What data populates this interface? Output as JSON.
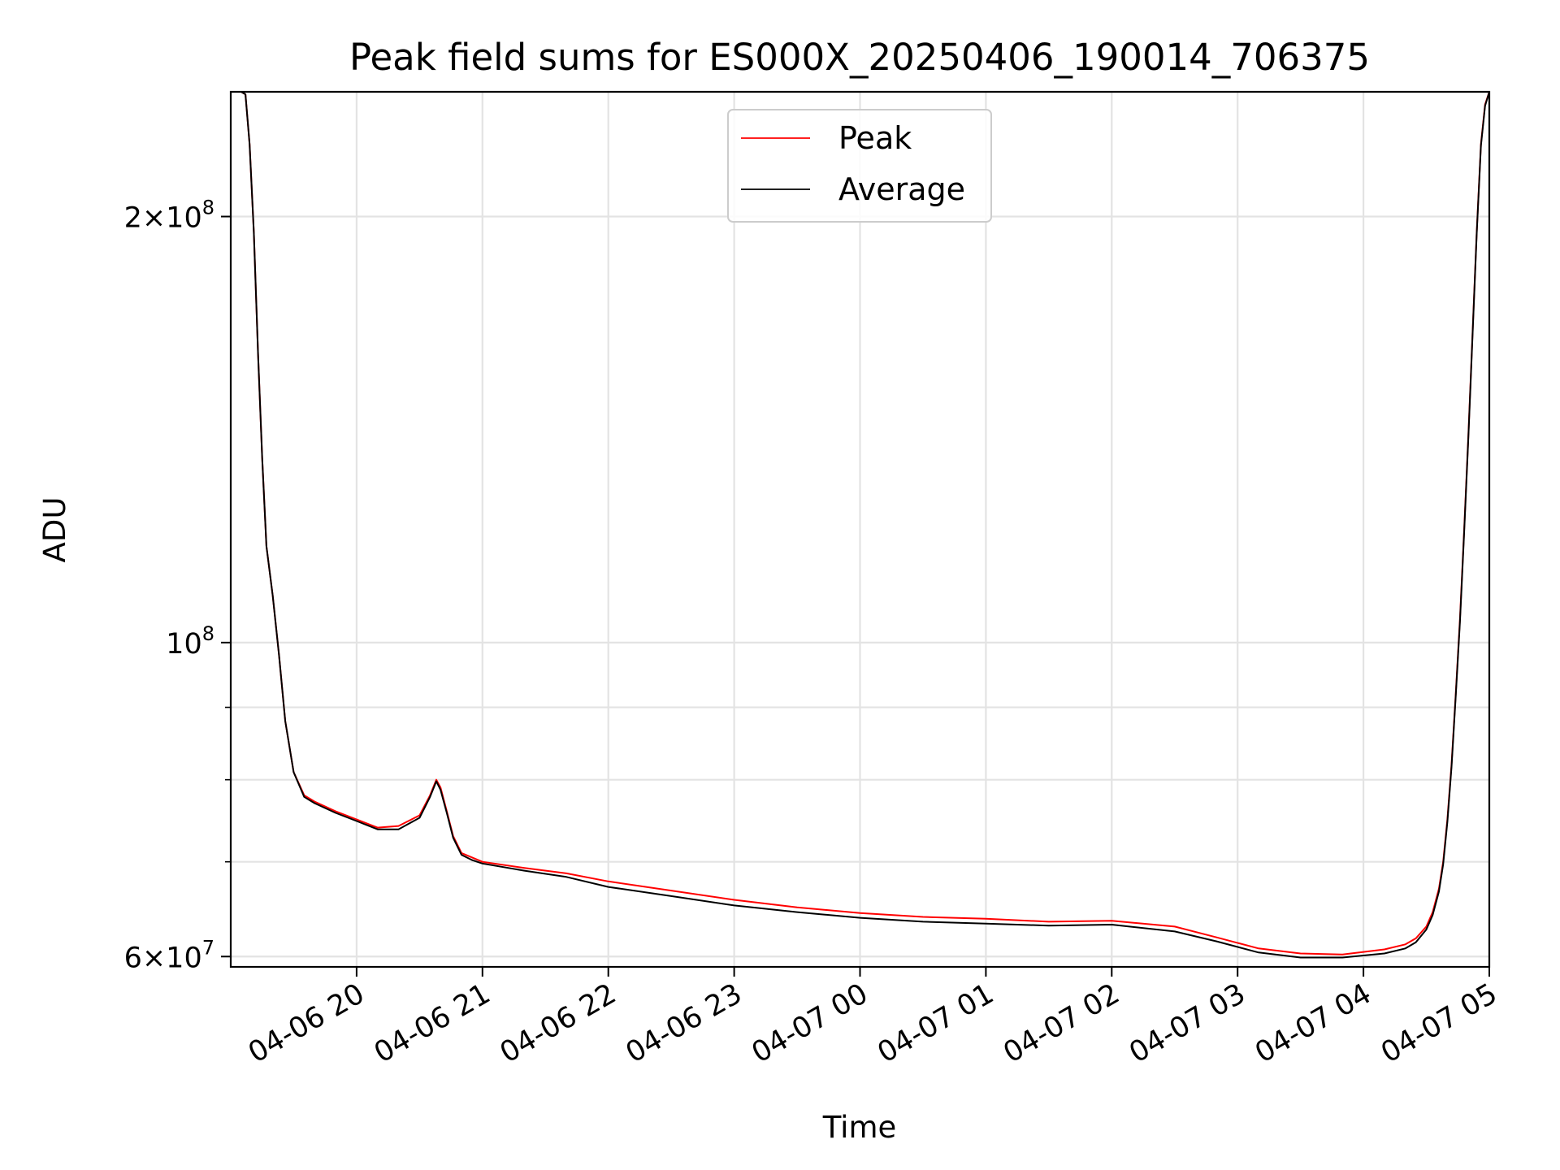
{
  "chart_data": {
    "type": "line",
    "title": "Peak field sums for ES000X_20250406_190014_706375",
    "xlabel": "Time",
    "ylabel": "ADU",
    "yscale": "log",
    "grid": true,
    "legend_position": "upper center",
    "xlim": [
      "2025-04-06 19:00",
      "2025-04-07 05:00"
    ],
    "ylim": [
      59000000,
      245000000
    ],
    "x_ticks": [
      {
        "value": "2025-04-06 20:00",
        "label": "04-06 20"
      },
      {
        "value": "2025-04-06 21:00",
        "label": "04-06 21"
      },
      {
        "value": "2025-04-06 22:00",
        "label": "04-06 22"
      },
      {
        "value": "2025-04-06 23:00",
        "label": "04-06 23"
      },
      {
        "value": "2025-04-07 00:00",
        "label": "04-07 00"
      },
      {
        "value": "2025-04-07 01:00",
        "label": "04-07 01"
      },
      {
        "value": "2025-04-07 02:00",
        "label": "04-07 02"
      },
      {
        "value": "2025-04-07 03:00",
        "label": "04-07 03"
      },
      {
        "value": "2025-04-07 04:00",
        "label": "04-07 04"
      },
      {
        "value": "2025-04-07 05:00",
        "label": "04-07 05"
      }
    ],
    "y_ticks": [
      {
        "value": 60000000,
        "mantissa": "6",
        "exponent": "7"
      },
      {
        "value": 100000000,
        "mantissa": "",
        "exponent": "8"
      },
      {
        "value": 200000000,
        "mantissa": "2",
        "exponent": "8"
      }
    ],
    "y_minor_ticks": [
      70000000,
      80000000,
      90000000
    ],
    "series": [
      {
        "name": "Peak",
        "color": "#ff0000",
        "x": [
          "2025-04-06 19:05",
          "2025-04-06 19:07",
          "2025-04-06 19:09",
          "2025-04-06 19:11",
          "2025-04-06 19:13",
          "2025-04-06 19:15",
          "2025-04-06 19:17",
          "2025-04-06 19:20",
          "2025-04-06 19:23",
          "2025-04-06 19:26",
          "2025-04-06 19:30",
          "2025-04-06 19:35",
          "2025-04-06 19:40",
          "2025-04-06 19:50",
          "2025-04-06 20:00",
          "2025-04-06 20:10",
          "2025-04-06 20:20",
          "2025-04-06 20:30",
          "2025-04-06 20:35",
          "2025-04-06 20:38",
          "2025-04-06 20:40",
          "2025-04-06 20:43",
          "2025-04-06 20:46",
          "2025-04-06 20:50",
          "2025-04-06 20:55",
          "2025-04-06 21:00",
          "2025-04-06 21:20",
          "2025-04-06 21:40",
          "2025-04-06 22:00",
          "2025-04-06 22:30",
          "2025-04-06 23:00",
          "2025-04-06 23:30",
          "2025-04-07 00:00",
          "2025-04-07 00:30",
          "2025-04-07 01:00",
          "2025-04-07 01:30",
          "2025-04-07 02:00",
          "2025-04-07 02:30",
          "2025-04-07 02:50",
          "2025-04-07 03:10",
          "2025-04-07 03:30",
          "2025-04-07 03:50",
          "2025-04-07 04:10",
          "2025-04-07 04:20",
          "2025-04-07 04:25",
          "2025-04-07 04:30",
          "2025-04-07 04:33",
          "2025-04-07 04:36",
          "2025-04-07 04:38",
          "2025-04-07 04:40",
          "2025-04-07 04:42",
          "2025-04-07 04:44",
          "2025-04-07 04:46",
          "2025-04-07 04:48",
          "2025-04-07 04:50",
          "2025-04-07 04:52",
          "2025-04-07 04:54",
          "2025-04-07 04:56",
          "2025-04-07 04:58",
          "2025-04-07 05:00",
          "2025-04-07 05:02"
        ],
        "y": [
          245000000,
          244000000,
          225000000,
          195000000,
          160000000,
          135000000,
          117000000,
          108000000,
          98000000,
          88000000,
          81000000,
          78000000,
          77200000,
          76000000,
          75000000,
          74000000,
          74200000,
          75500000,
          78000000,
          80000000,
          79000000,
          76000000,
          73000000,
          71000000,
          70500000,
          70000000,
          69300000,
          68700000,
          67800000,
          66800000,
          65800000,
          65000000,
          64400000,
          64000000,
          63800000,
          63500000,
          63600000,
          63000000,
          61900000,
          60800000,
          60300000,
          60200000,
          60700000,
          61200000,
          61800000,
          63000000,
          64500000,
          67000000,
          70000000,
          75000000,
          82000000,
          92000000,
          104000000,
          120000000,
          140000000,
          165000000,
          195000000,
          225000000,
          240000000,
          245000000,
          245000000
        ]
      },
      {
        "name": "Average",
        "color": "#000000",
        "x": [
          "2025-04-06 19:05",
          "2025-04-06 19:07",
          "2025-04-06 19:09",
          "2025-04-06 19:11",
          "2025-04-06 19:13",
          "2025-04-06 19:15",
          "2025-04-06 19:17",
          "2025-04-06 19:20",
          "2025-04-06 19:23",
          "2025-04-06 19:26",
          "2025-04-06 19:30",
          "2025-04-06 19:35",
          "2025-04-06 19:40",
          "2025-04-06 19:50",
          "2025-04-06 20:00",
          "2025-04-06 20:10",
          "2025-04-06 20:20",
          "2025-04-06 20:30",
          "2025-04-06 20:35",
          "2025-04-06 20:38",
          "2025-04-06 20:40",
          "2025-04-06 20:43",
          "2025-04-06 20:46",
          "2025-04-06 20:50",
          "2025-04-06 20:55",
          "2025-04-06 21:00",
          "2025-04-06 21:20",
          "2025-04-06 21:40",
          "2025-04-06 22:00",
          "2025-04-06 22:30",
          "2025-04-06 23:00",
          "2025-04-06 23:30",
          "2025-04-07 00:00",
          "2025-04-07 00:30",
          "2025-04-07 01:00",
          "2025-04-07 01:30",
          "2025-04-07 02:00",
          "2025-04-07 02:30",
          "2025-04-07 02:50",
          "2025-04-07 03:10",
          "2025-04-07 03:30",
          "2025-04-07 03:50",
          "2025-04-07 04:10",
          "2025-04-07 04:20",
          "2025-04-07 04:25",
          "2025-04-07 04:30",
          "2025-04-07 04:33",
          "2025-04-07 04:36",
          "2025-04-07 04:38",
          "2025-04-07 04:40",
          "2025-04-07 04:42",
          "2025-04-07 04:44",
          "2025-04-07 04:46",
          "2025-04-07 04:48",
          "2025-04-07 04:50",
          "2025-04-07 04:52",
          "2025-04-07 04:54",
          "2025-04-07 04:56",
          "2025-04-07 04:58",
          "2025-04-07 05:00",
          "2025-04-07 05:02"
        ],
        "y": [
          245000000,
          244000000,
          225000000,
          195000000,
          160000000,
          135000000,
          117000000,
          108000000,
          98000000,
          88000000,
          81000000,
          77800000,
          77000000,
          75800000,
          74800000,
          73800000,
          73800000,
          75200000,
          77800000,
          79800000,
          78700000,
          75800000,
          72800000,
          70800000,
          70200000,
          69800000,
          69000000,
          68300000,
          67200000,
          66200000,
          65200000,
          64500000,
          63900000,
          63500000,
          63300000,
          63100000,
          63200000,
          62500000,
          61500000,
          60400000,
          59900000,
          59900000,
          60300000,
          60800000,
          61400000,
          62700000,
          64200000,
          66700000,
          69700000,
          74700000,
          81700000,
          91700000,
          103500000,
          119500000,
          139500000,
          164500000,
          194500000,
          224500000,
          239500000,
          245000000,
          245000000
        ]
      }
    ]
  }
}
